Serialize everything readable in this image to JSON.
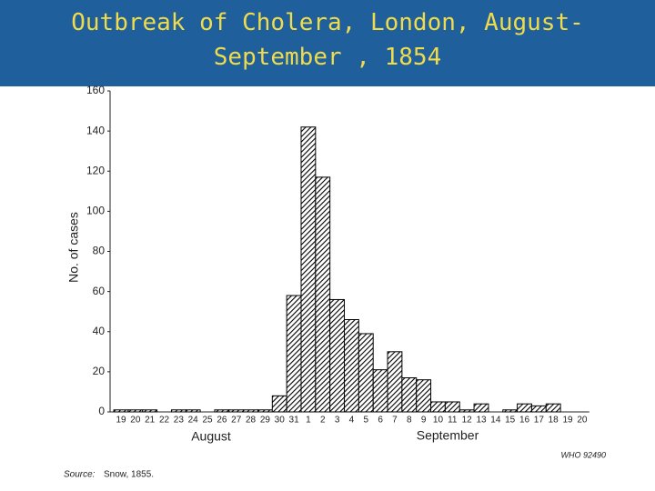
{
  "chart_data": {
    "type": "bar",
    "title": "Outbreak of Cholera, London, August-September , 1854",
    "y_label": "No. of cases",
    "categories": [
      "19",
      "20",
      "21",
      "22",
      "23",
      "24",
      "25",
      "26",
      "27",
      "28",
      "29",
      "30",
      "31",
      "1",
      "2",
      "3",
      "4",
      "5",
      "6",
      "7",
      "8",
      "9",
      "10",
      "11",
      "12",
      "13",
      "14",
      "15",
      "16",
      "17",
      "18",
      "19",
      "20"
    ],
    "values": [
      1,
      1,
      1,
      0,
      1,
      1,
      0,
      1,
      1,
      1,
      1,
      8,
      58,
      142,
      117,
      56,
      46,
      39,
      21,
      30,
      17,
      16,
      5,
      5,
      1,
      4,
      0,
      1,
      4,
      3,
      4,
      0,
      0
    ],
    "color": "#000000",
    "ylim": [
      0,
      160
    ],
    "yticks": [
      0,
      20,
      40,
      60,
      80,
      100,
      120,
      140,
      160
    ],
    "grid": false,
    "month_labels": [
      "August",
      "September"
    ],
    "annotation": "WHO 92490",
    "source": {
      "label": "Source:",
      "text": "Snow, 1855."
    }
  }
}
